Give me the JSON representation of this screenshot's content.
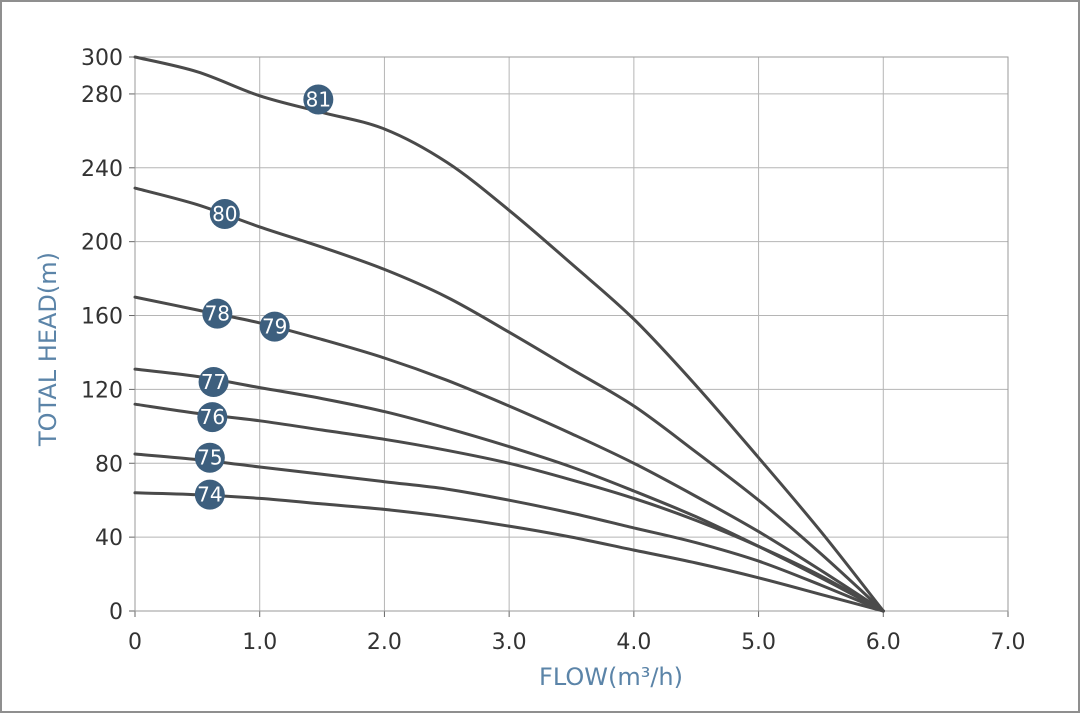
{
  "chart_data": {
    "type": "line",
    "xlabel": "FLOW(m³/h)",
    "ylabel": "TOTAL HEAD(m)",
    "xlim": [
      0,
      7
    ],
    "ylim": [
      0,
      300
    ],
    "x_ticks": [
      0,
      1,
      2,
      3,
      4,
      5,
      6,
      7
    ],
    "x_tick_labels": [
      "0",
      "1.0",
      "2.0",
      "3.0",
      "4.0",
      "5.0",
      "6.0",
      "7.0"
    ],
    "y_ticks": [
      0,
      40,
      80,
      120,
      160,
      200,
      240,
      280,
      300
    ],
    "y_tick_labels": [
      "0",
      "40",
      "80",
      "120",
      "160",
      "200",
      "240",
      "280",
      "300"
    ],
    "grid": true,
    "colors": {
      "line": "#4a4a4a",
      "badge": "#3d5f7e",
      "grid": "#b5b5b5",
      "axis_label": "#5b84a8"
    },
    "series": [
      {
        "name": "81",
        "label_at": [
          1.47,
          277
        ],
        "points": [
          [
            0,
            300
          ],
          [
            0.5,
            292
          ],
          [
            1,
            279
          ],
          [
            1.5,
            270
          ],
          [
            2,
            261
          ],
          [
            2.5,
            243
          ],
          [
            3,
            217
          ],
          [
            3.5,
            188
          ],
          [
            4,
            158
          ],
          [
            4.5,
            122
          ],
          [
            5,
            83
          ],
          [
            5.5,
            43
          ],
          [
            6,
            0
          ]
        ]
      },
      {
        "name": "80",
        "label_at": [
          0.72,
          215
        ],
        "points": [
          [
            0,
            229
          ],
          [
            0.5,
            220
          ],
          [
            1,
            208
          ],
          [
            1.5,
            197
          ],
          [
            2,
            185
          ],
          [
            2.5,
            170
          ],
          [
            3,
            151
          ],
          [
            3.5,
            131
          ],
          [
            4,
            111
          ],
          [
            4.5,
            86
          ],
          [
            5,
            60
          ],
          [
            5.5,
            31
          ],
          [
            6,
            0
          ]
        ]
      },
      {
        "name": "79",
        "label_at": [
          1.12,
          154
        ],
        "points": [
          [
            0,
            170
          ],
          [
            0.5,
            163
          ],
          [
            1,
            156
          ],
          [
            1.5,
            147
          ],
          [
            2,
            137
          ],
          [
            2.5,
            125
          ],
          [
            3,
            111
          ],
          [
            3.5,
            96
          ],
          [
            4,
            80
          ],
          [
            4.5,
            62
          ],
          [
            5,
            43
          ],
          [
            5.5,
            22
          ],
          [
            6,
            0
          ]
        ]
      },
      {
        "name": "78",
        "label_at": [
          0.66,
          161
        ],
        "points": []
      },
      {
        "name": "77",
        "label_at": [
          0.63,
          124
        ],
        "points": [
          [
            0,
            131
          ],
          [
            0.5,
            127
          ],
          [
            1,
            121
          ],
          [
            1.5,
            115
          ],
          [
            2,
            108
          ],
          [
            2.5,
            99
          ],
          [
            3,
            89
          ],
          [
            3.5,
            78
          ],
          [
            4,
            65
          ],
          [
            4.5,
            51
          ],
          [
            5,
            35
          ],
          [
            5.5,
            18
          ],
          [
            6,
            0
          ]
        ]
      },
      {
        "name": "76",
        "label_at": [
          0.62,
          105
        ],
        "points": [
          [
            0,
            112
          ],
          [
            0.5,
            107
          ],
          [
            1,
            103
          ],
          [
            1.5,
            98
          ],
          [
            2,
            93
          ],
          [
            2.5,
            87
          ],
          [
            3,
            80
          ],
          [
            3.5,
            71
          ],
          [
            4,
            61
          ],
          [
            4.5,
            49
          ],
          [
            5,
            35
          ],
          [
            5.5,
            19
          ],
          [
            6,
            0
          ]
        ]
      },
      {
        "name": "75",
        "label_at": [
          0.6,
          83
        ],
        "points": [
          [
            0,
            85
          ],
          [
            0.5,
            82
          ],
          [
            1,
            78
          ],
          [
            1.5,
            74
          ],
          [
            2,
            70
          ],
          [
            2.5,
            66
          ],
          [
            3,
            60
          ],
          [
            3.5,
            53
          ],
          [
            4,
            45
          ],
          [
            4.5,
            37
          ],
          [
            5,
            27
          ],
          [
            5.5,
            14
          ],
          [
            6,
            0
          ]
        ]
      },
      {
        "name": "74",
        "label_at": [
          0.6,
          63
        ],
        "points": [
          [
            0,
            64
          ],
          [
            0.5,
            63
          ],
          [
            1,
            61
          ],
          [
            1.5,
            58
          ],
          [
            2,
            55
          ],
          [
            2.5,
            51
          ],
          [
            3,
            46
          ],
          [
            3.5,
            40
          ],
          [
            4,
            33
          ],
          [
            4.5,
            26
          ],
          [
            5,
            18
          ],
          [
            5.5,
            9
          ],
          [
            6,
            0
          ]
        ]
      }
    ]
  }
}
